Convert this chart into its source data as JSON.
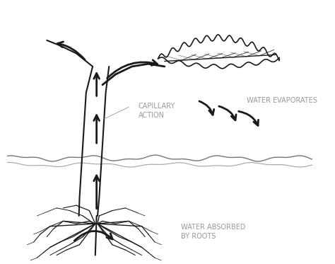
{
  "bg_color": "#ffffff",
  "text_color": "#999999",
  "line_color": "#1a1a1a",
  "label_capillary": "CAPILLARY\nACTION",
  "label_evaporates": "WATER EVAPORATES",
  "label_absorbed": "WATER ABSORBED\nBY ROOTS",
  "label_fontsize": 7,
  "fig_width": 4.74,
  "fig_height": 3.73,
  "dpi": 100
}
